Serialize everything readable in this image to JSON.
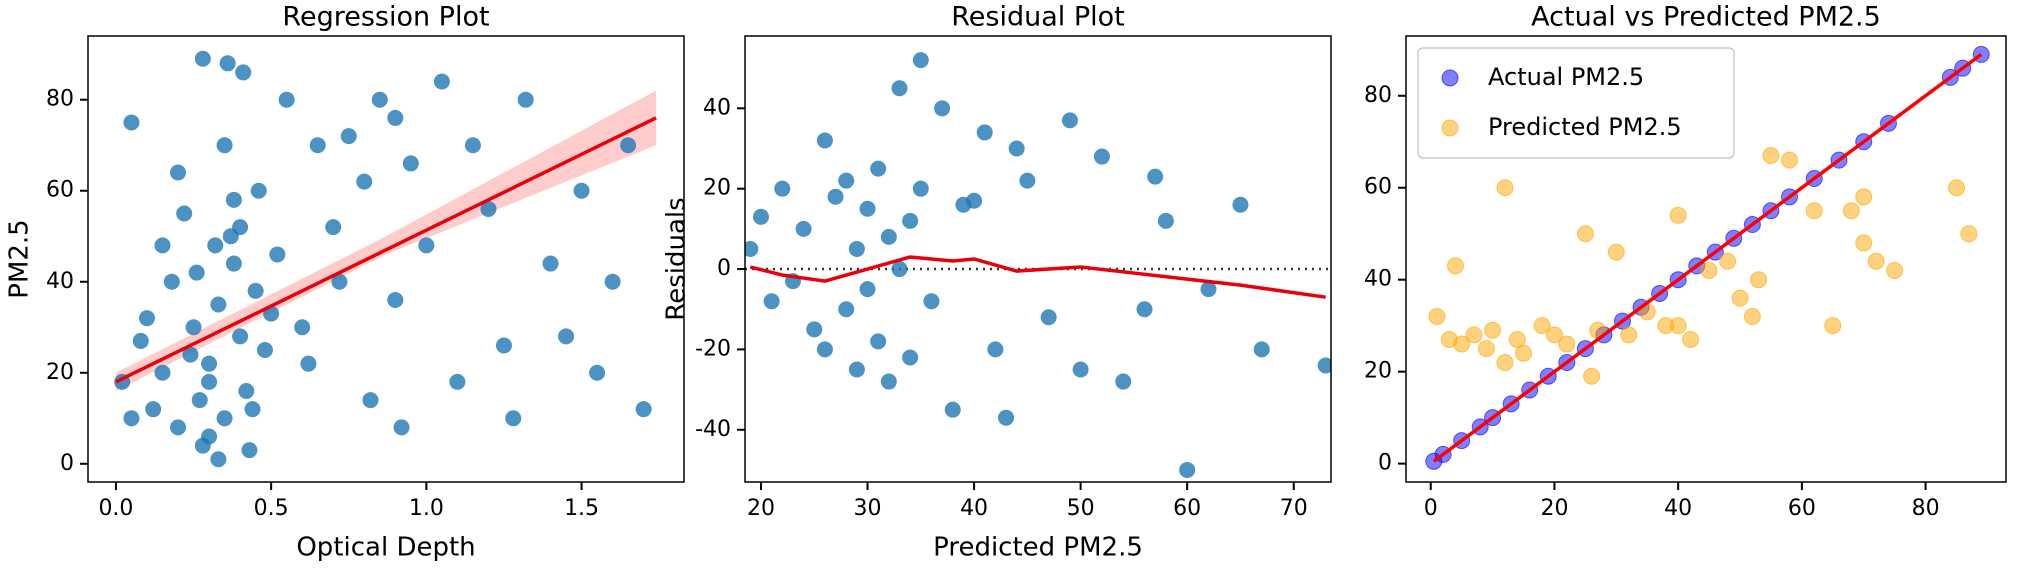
{
  "chart_data": [
    {
      "type": "scatter",
      "title": "Regression Plot",
      "xlabel": "Optical Depth",
      "ylabel": "PM2.5",
      "xlim": [
        -0.09,
        1.83
      ],
      "ylim": [
        -4,
        94
      ],
      "xticks": [
        {
          "value": 0,
          "label": "0.0"
        },
        0.5,
        {
          "value": 1,
          "label": "1.0"
        },
        1.5
      ],
      "yticks": [
        0,
        20,
        40,
        60,
        80
      ],
      "series": [
        {
          "color": "#1f77b4",
          "x": [
            0.02,
            0.05,
            0.08,
            0.1,
            0.12,
            0.15,
            0.18,
            0.2,
            0.22,
            0.25,
            0.27,
            0.28,
            0.3,
            0.3,
            0.32,
            0.33,
            0.35,
            0.36,
            0.38,
            0.4,
            0.4,
            0.42,
            0.43,
            0.45,
            0.46,
            0.48,
            0.5,
            0.3,
            0.26,
            0.35,
            0.41,
            0.2,
            0.24,
            0.37,
            0.44,
            0.52,
            0.55,
            0.6,
            0.62,
            0.65,
            0.7,
            0.72,
            0.75,
            0.8,
            0.82,
            0.85,
            0.9,
            0.92,
            0.95,
            1.0,
            1.05,
            1.1,
            1.15,
            1.2,
            1.28,
            1.32,
            1.4,
            1.45,
            1.5,
            1.55,
            1.6,
            1.65,
            1.7,
            0.28,
            0.33,
            0.38,
            0.9,
            1.25,
            0.15,
            0.05
          ],
          "values": [
            18,
            75,
            27,
            32,
            12,
            20,
            40,
            8,
            55,
            30,
            14,
            89,
            22,
            6,
            48,
            35,
            10,
            88,
            44,
            28,
            52,
            16,
            3,
            38,
            60,
            25,
            33,
            18,
            42,
            70,
            86,
            64,
            24,
            50,
            12,
            46,
            80,
            30,
            22,
            70,
            52,
            40,
            72,
            62,
            14,
            80,
            36,
            8,
            66,
            48,
            84,
            18,
            70,
            56,
            10,
            80,
            44,
            28,
            60,
            20,
            40,
            70,
            12,
            4,
            1,
            58,
            76,
            26,
            48,
            10
          ]
        }
      ],
      "band": {
        "color": "#ffb6b6",
        "x": [
          0,
          0.87,
          1.74
        ],
        "lower": [
          16,
          46,
          70
        ],
        "upper": [
          20,
          50,
          82
        ]
      },
      "lines": [
        {
          "color": "#e8000b",
          "x": [
            0,
            1.74
          ],
          "values": [
            18,
            76
          ]
        }
      ]
    },
    {
      "type": "scatter",
      "title": "Residual Plot",
      "xlabel": "Predicted PM2.5",
      "ylabel": "Residuals",
      "xlim": [
        18.5,
        73.5
      ],
      "ylim": [
        -53,
        58
      ],
      "xticks": [
        20,
        30,
        40,
        50,
        60,
        70
      ],
      "yticks": [
        -40,
        -20,
        0,
        20,
        40
      ],
      "hline": 0,
      "series": [
        {
          "color": "#1f77b4",
          "x": [
            19,
            20,
            21,
            22,
            23,
            24,
            25,
            26,
            26,
            27,
            28,
            28,
            29,
            29,
            30,
            30,
            31,
            31,
            32,
            32,
            33,
            33,
            34,
            34,
            35,
            35,
            36,
            37,
            38,
            39,
            40,
            41,
            42,
            43,
            44,
            45,
            47,
            49,
            50,
            52,
            54,
            56,
            57,
            58,
            60,
            62,
            65,
            67,
            73
          ],
          "values": [
            5,
            13,
            -8,
            20,
            -3,
            10,
            -15,
            32,
            -20,
            18,
            -10,
            22,
            5,
            -25,
            15,
            -5,
            25,
            -18,
            8,
            -28,
            45,
            0,
            12,
            -22,
            52,
            20,
            -8,
            40,
            -35,
            16,
            17,
            34,
            -20,
            -37,
            30,
            22,
            -12,
            37,
            -25,
            28,
            -28,
            -10,
            23,
            12,
            -50,
            -5,
            16,
            -20,
            -24
          ]
        }
      ],
      "lines": [
        {
          "color": "#e8000b",
          "x": [
            19,
            22,
            26,
            30,
            34,
            38,
            40,
            44,
            50,
            55,
            60,
            65,
            73
          ],
          "values": [
            0.5,
            -1.5,
            -3,
            0,
            3,
            2,
            2.5,
            -0.5,
            0.5,
            -1,
            -2.5,
            -4,
            -7
          ]
        }
      ]
    },
    {
      "type": "scatter",
      "title": "Actual vs Predicted PM2.5",
      "xlim": [
        -4,
        93
      ],
      "ylim": [
        -4,
        93
      ],
      "xticks": [
        0,
        20,
        40,
        60,
        80
      ],
      "yticks": [
        0,
        20,
        40,
        60,
        80
      ],
      "legend": "upper left",
      "series": [
        {
          "name": "Actual PM2.5",
          "color": "#0000ff",
          "x": [
            0.5,
            2,
            5,
            8,
            10,
            13,
            16,
            19,
            22,
            25,
            28,
            31,
            34,
            37,
            40,
            43,
            46,
            49,
            52,
            55,
            58,
            62,
            66,
            70,
            74,
            84,
            86,
            89
          ],
          "values": [
            0.5,
            2,
            5,
            8,
            10,
            13,
            16,
            19,
            22,
            25,
            28,
            31,
            34,
            37,
            40,
            43,
            46,
            49,
            52,
            55,
            58,
            62,
            66,
            70,
            74,
            84,
            86,
            89
          ]
        },
        {
          "name": "Predicted PM2.5",
          "color": "#ffa500",
          "x": [
            1,
            3,
            5,
            7,
            9,
            10,
            12,
            14,
            15,
            18,
            20,
            22,
            25,
            27,
            30,
            32,
            35,
            38,
            40,
            42,
            45,
            48,
            50,
            52,
            55,
            58,
            62,
            65,
            68,
            70,
            72,
            75,
            85,
            87,
            4,
            12,
            26,
            40,
            53,
            70
          ],
          "values": [
            32,
            27,
            26,
            28,
            25,
            29,
            60,
            27,
            24,
            30,
            28,
            26,
            50,
            29,
            46,
            28,
            33,
            30,
            54,
            27,
            42,
            44,
            36,
            32,
            67,
            66,
            55,
            30,
            55,
            58,
            44,
            42,
            60,
            50,
            43,
            22,
            19,
            30,
            40,
            48
          ]
        }
      ],
      "lines": [
        {
          "color": "#ff0000",
          "x": [
            0.5,
            89
          ],
          "values": [
            0.5,
            89
          ]
        }
      ]
    }
  ]
}
